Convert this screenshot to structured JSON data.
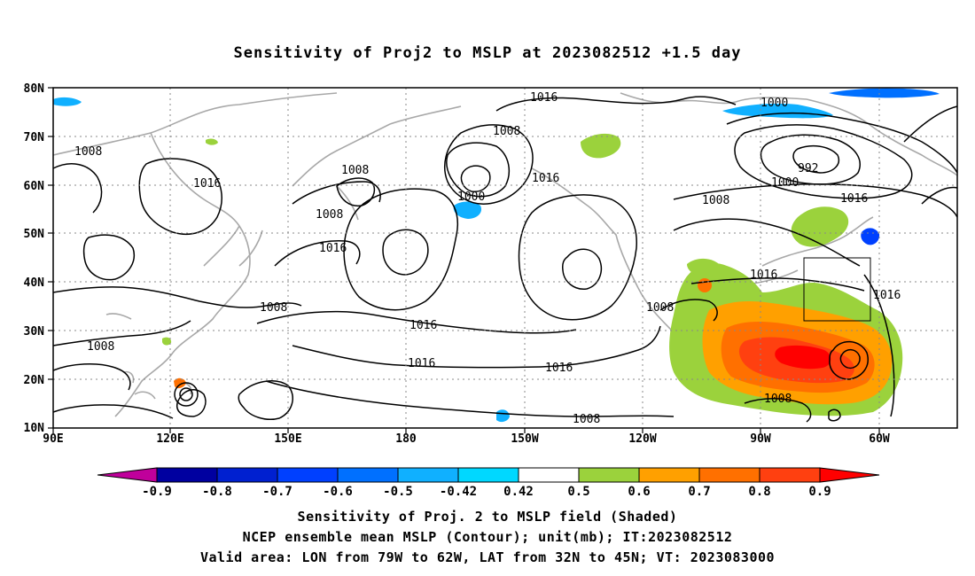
{
  "title": "Sensitivity of Proj2 to MSLP at 2023082512 +1.5 day",
  "map": {
    "lat_labels": [
      "80N",
      "70N",
      "60N",
      "50N",
      "40N",
      "30N",
      "20N",
      "10N"
    ],
    "lon_labels": [
      "90E",
      "120E",
      "150E",
      "180",
      "150W",
      "120W",
      "90W",
      "60W"
    ],
    "contour_labels": [
      {
        "text": "1016"
      },
      {
        "text": "1008"
      },
      {
        "text": "1000"
      },
      {
        "text": "992"
      },
      {
        "text": "1000"
      },
      {
        "text": "1008"
      },
      {
        "text": "1016"
      },
      {
        "text": "1008"
      },
      {
        "text": "1016"
      },
      {
        "text": "1008"
      },
      {
        "text": "1000"
      },
      {
        "text": "1016"
      },
      {
        "text": "1008"
      },
      {
        "text": "1016"
      },
      {
        "text": "1008"
      },
      {
        "text": "1016"
      },
      {
        "text": "1016"
      },
      {
        "text": "1016"
      },
      {
        "text": "1008"
      },
      {
        "text": "1016"
      },
      {
        "text": "1008"
      },
      {
        "text": "1008"
      }
    ]
  },
  "colorbar": {
    "labels": [
      "-0.9",
      "-0.8",
      "-0.7",
      "-0.6",
      "-0.5",
      "-0.42",
      "0.42",
      "0.5",
      "0.6",
      "0.7",
      "0.8",
      "0.9"
    ],
    "colors": [
      "#c0009b",
      "#0000a0",
      "#0020d0",
      "#0040ff",
      "#0070ff",
      "#10b0ff",
      "#00d8ff",
      "#ffffff",
      "#9bd23c",
      "#ffa000",
      "#ff7000",
      "#ff4010",
      "#ff0000",
      "#ff9ccc"
    ]
  },
  "captions": [
    "Sensitivity of Proj. 2 to MSLP field (Shaded)",
    "NCEP ensemble mean MSLP (Contour); unit(mb); IT:2023082512",
    "Valid area: LON from 79W to 62W, LAT from 32N to 45N; VT: 2023083000"
  ]
}
